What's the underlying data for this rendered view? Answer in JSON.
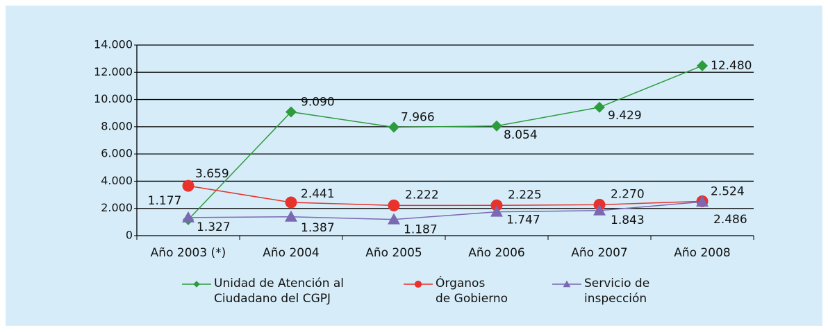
{
  "chart_data": {
    "type": "line",
    "categories": [
      "Año 2003 (*)",
      "Año 2004",
      "Año 2005",
      "Año 2006",
      "Año 2007",
      "Año 2008"
    ],
    "series": [
      {
        "name": "Unidad de Atención al\nCiudadano del CGPJ",
        "color": "#2e9b3c",
        "marker": "diamond",
        "values": [
          1177,
          9090,
          7966,
          8054,
          9429,
          12480
        ],
        "value_labels": [
          "1.177",
          "9.090",
          "7.966",
          "8.054",
          "9.429",
          "12.480"
        ]
      },
      {
        "name": "Órganos\nde Gobierno",
        "color": "#e8322b",
        "marker": "circle",
        "values": [
          3659,
          2441,
          2222,
          2225,
          2270,
          2524
        ],
        "value_labels": [
          "3.659",
          "2.441",
          "2.222",
          "2.225",
          "2.270",
          "2.524"
        ]
      },
      {
        "name": "Servicio de\ninspección",
        "color": "#7a68b3",
        "marker": "triangle",
        "values": [
          1327,
          1387,
          1187,
          1747,
          1843,
          2486
        ],
        "value_labels": [
          "1.327",
          "1.387",
          "1.187",
          "1.747",
          "1.843",
          "2.486"
        ]
      }
    ],
    "ylim": [
      0,
      14000
    ],
    "yticks": [
      0,
      {
        "value": 2000,
        "label": "2.000"
      },
      {
        "value": 4000,
        "label": "4.000"
      },
      {
        "value": 6000,
        "label": "6.000"
      },
      {
        "value": 8000,
        "label": "8.000"
      },
      {
        "value": 10000,
        "label": "10.000"
      },
      {
        "value": 12000,
        "label": "12.000"
      },
      {
        "value": 14000,
        "label": "14.000"
      }
    ],
    "grid": true
  }
}
